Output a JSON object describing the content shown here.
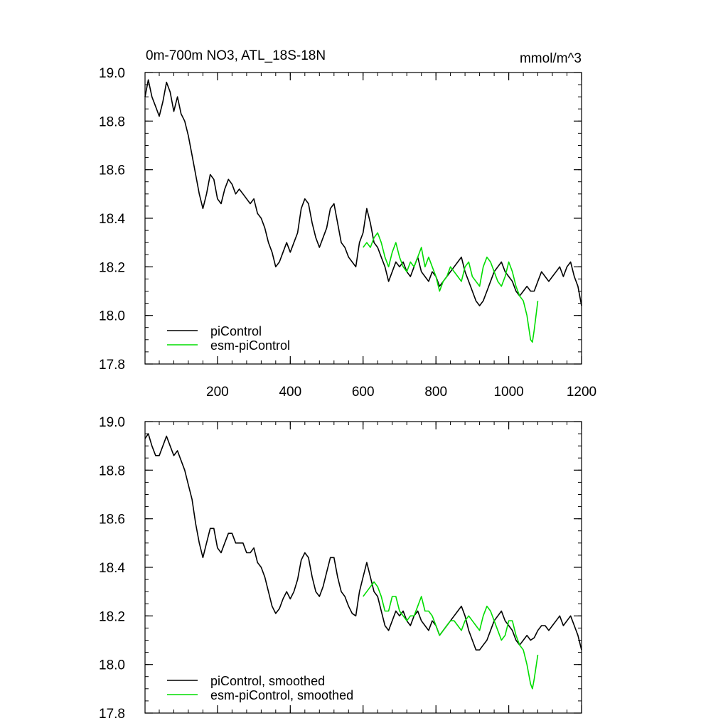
{
  "chart_data": [
    {
      "type": "line",
      "title": "0m-700m NO3, ATL_18S-18N",
      "units": "mmol/m^3",
      "xlim": [
        1,
        1200
      ],
      "ylim": [
        17.8,
        19.0
      ],
      "xticks": [
        200,
        400,
        600,
        800,
        1000,
        1200
      ],
      "xtick_labels": [
        "200",
        "400",
        "600",
        "800",
        "1000",
        "1200"
      ],
      "yticks": [
        17.8,
        18.0,
        18.2,
        18.4,
        18.6,
        18.8,
        19.0
      ],
      "ytick_labels": [
        "17.8",
        "18.0",
        "18.2",
        "18.4",
        "18.6",
        "18.8",
        "19.0"
      ],
      "legend_position": "bottom-left",
      "series": [
        {
          "name": "piControl",
          "color": "#000000",
          "x": [
            1,
            10,
            20,
            30,
            40,
            50,
            60,
            70,
            80,
            90,
            100,
            110,
            120,
            130,
            140,
            150,
            160,
            170,
            180,
            190,
            200,
            210,
            220,
            230,
            240,
            250,
            260,
            270,
            280,
            290,
            300,
            310,
            320,
            330,
            340,
            350,
            360,
            370,
            380,
            390,
            400,
            410,
            420,
            430,
            440,
            450,
            460,
            470,
            480,
            490,
            500,
            510,
            520,
            530,
            540,
            550,
            560,
            570,
            580,
            590,
            600,
            610,
            620,
            630,
            640,
            650,
            660,
            670,
            680,
            690,
            700,
            710,
            720,
            730,
            740,
            750,
            760,
            770,
            780,
            790,
            800,
            810,
            820,
            830,
            840,
            850,
            860,
            870,
            880,
            890,
            900,
            910,
            920,
            930,
            940,
            950,
            960,
            970,
            980,
            990,
            1000,
            1010,
            1020,
            1030,
            1040,
            1050,
            1060,
            1070,
            1080,
            1090,
            1100,
            1110,
            1120,
            1130,
            1140,
            1150,
            1160,
            1170,
            1180,
            1190,
            1200
          ],
          "y": [
            18.9,
            18.97,
            18.9,
            18.86,
            18.82,
            18.88,
            18.96,
            18.92,
            18.84,
            18.9,
            18.83,
            18.8,
            18.74,
            18.66,
            18.58,
            18.5,
            18.44,
            18.5,
            18.58,
            18.56,
            18.48,
            18.46,
            18.52,
            18.56,
            18.54,
            18.5,
            18.52,
            18.5,
            18.48,
            18.46,
            18.48,
            18.42,
            18.4,
            18.36,
            18.3,
            18.26,
            18.2,
            18.22,
            18.26,
            18.3,
            18.26,
            18.3,
            18.34,
            18.44,
            18.48,
            18.46,
            18.38,
            18.32,
            18.28,
            18.32,
            18.36,
            18.44,
            18.46,
            18.38,
            18.3,
            18.28,
            18.24,
            18.22,
            18.2,
            18.3,
            18.34,
            18.44,
            18.38,
            18.3,
            18.28,
            18.24,
            18.2,
            18.14,
            18.18,
            18.22,
            18.2,
            18.22,
            18.18,
            18.16,
            18.2,
            18.24,
            18.18,
            18.16,
            18.14,
            18.18,
            18.16,
            18.12,
            18.14,
            18.16,
            18.18,
            18.2,
            18.22,
            18.24,
            18.18,
            18.14,
            18.1,
            18.06,
            18.04,
            18.06,
            18.1,
            18.14,
            18.18,
            18.2,
            18.22,
            18.18,
            18.16,
            18.14,
            18.1,
            18.08,
            18.1,
            18.12,
            18.1,
            18.1,
            18.14,
            18.18,
            18.16,
            18.14,
            18.16,
            18.18,
            18.2,
            18.16,
            18.2,
            18.22,
            18.16,
            18.12,
            18.04
          ]
        },
        {
          "name": "esm-piControl",
          "color": "#00dd00",
          "x": [
            600,
            610,
            620,
            630,
            640,
            650,
            660,
            670,
            680,
            690,
            700,
            710,
            720,
            730,
            740,
            750,
            760,
            770,
            780,
            790,
            800,
            810,
            820,
            830,
            840,
            850,
            860,
            870,
            880,
            890,
            900,
            910,
            920,
            930,
            940,
            950,
            960,
            970,
            980,
            990,
            1000,
            1010,
            1020,
            1030,
            1040,
            1050,
            1060,
            1065,
            1070,
            1080
          ],
          "y": [
            18.28,
            18.3,
            18.28,
            18.32,
            18.34,
            18.3,
            18.24,
            18.2,
            18.26,
            18.3,
            18.24,
            18.2,
            18.18,
            18.22,
            18.2,
            18.24,
            18.28,
            18.2,
            18.24,
            18.2,
            18.16,
            18.1,
            18.14,
            18.16,
            18.2,
            18.18,
            18.16,
            18.14,
            18.2,
            18.22,
            18.16,
            18.14,
            18.12,
            18.2,
            18.24,
            18.22,
            18.18,
            18.14,
            18.12,
            18.16,
            18.22,
            18.18,
            18.12,
            18.08,
            18.06,
            18.0,
            17.9,
            17.89,
            17.94,
            18.06
          ]
        }
      ]
    },
    {
      "type": "line",
      "title": "",
      "units": "",
      "xlim": [
        1,
        1200
      ],
      "ylim": [
        17.8,
        19.0
      ],
      "yticks": [
        17.8,
        18.0,
        18.2,
        18.4,
        18.6,
        18.8,
        19.0
      ],
      "ytick_labels": [
        "17.8",
        "18.0",
        "18.2",
        "18.4",
        "18.6",
        "18.8",
        "19.0"
      ],
      "legend_position": "bottom-left",
      "series": [
        {
          "name": "piControl, smoothed",
          "color": "#000000",
          "x": [
            1,
            10,
            20,
            30,
            40,
            50,
            60,
            70,
            80,
            90,
            100,
            110,
            120,
            130,
            140,
            150,
            160,
            170,
            180,
            190,
            200,
            210,
            220,
            230,
            240,
            250,
            260,
            270,
            280,
            290,
            300,
            310,
            320,
            330,
            340,
            350,
            360,
            370,
            380,
            390,
            400,
            410,
            420,
            430,
            440,
            450,
            460,
            470,
            480,
            490,
            500,
            510,
            520,
            530,
            540,
            550,
            560,
            570,
            580,
            590,
            600,
            610,
            620,
            630,
            640,
            650,
            660,
            670,
            680,
            690,
            700,
            710,
            720,
            730,
            740,
            750,
            760,
            770,
            780,
            790,
            800,
            810,
            820,
            830,
            840,
            850,
            860,
            870,
            880,
            890,
            900,
            910,
            920,
            930,
            940,
            950,
            960,
            970,
            980,
            990,
            1000,
            1010,
            1020,
            1030,
            1040,
            1050,
            1060,
            1070,
            1080,
            1090,
            1100,
            1110,
            1120,
            1130,
            1140,
            1150,
            1160,
            1170,
            1180,
            1190,
            1200
          ],
          "y": [
            18.93,
            18.95,
            18.9,
            18.86,
            18.86,
            18.9,
            18.94,
            18.9,
            18.86,
            18.88,
            18.84,
            18.8,
            18.74,
            18.68,
            18.58,
            18.5,
            18.44,
            18.5,
            18.56,
            18.56,
            18.48,
            18.46,
            18.5,
            18.54,
            18.54,
            18.5,
            18.5,
            18.5,
            18.46,
            18.46,
            18.48,
            18.42,
            18.4,
            18.36,
            18.3,
            18.24,
            18.21,
            18.23,
            18.27,
            18.3,
            18.27,
            18.3,
            18.35,
            18.43,
            18.46,
            18.44,
            18.36,
            18.3,
            18.28,
            18.32,
            18.38,
            18.44,
            18.44,
            18.36,
            18.3,
            18.28,
            18.24,
            18.21,
            18.2,
            18.3,
            18.36,
            18.42,
            18.36,
            18.3,
            18.28,
            18.22,
            18.16,
            18.14,
            18.18,
            18.22,
            18.2,
            18.22,
            18.18,
            18.16,
            18.2,
            18.22,
            18.18,
            18.16,
            18.14,
            18.18,
            18.16,
            18.12,
            18.14,
            18.16,
            18.18,
            18.2,
            18.22,
            18.24,
            18.2,
            18.14,
            18.1,
            18.06,
            18.06,
            18.08,
            18.1,
            18.14,
            18.18,
            18.2,
            18.22,
            18.18,
            18.16,
            18.14,
            18.1,
            18.08,
            18.1,
            18.12,
            18.1,
            18.11,
            18.14,
            18.16,
            18.16,
            18.14,
            18.16,
            18.18,
            18.2,
            18.16,
            18.18,
            18.2,
            18.16,
            18.12,
            18.06
          ]
        },
        {
          "name": "esm-piControl, smoothed",
          "color": "#00dd00",
          "x": [
            600,
            610,
            620,
            630,
            640,
            650,
            660,
            670,
            680,
            690,
            700,
            710,
            720,
            730,
            740,
            750,
            760,
            770,
            780,
            790,
            800,
            810,
            820,
            830,
            840,
            850,
            860,
            870,
            880,
            890,
            900,
            910,
            920,
            930,
            940,
            950,
            960,
            970,
            980,
            990,
            1000,
            1010,
            1020,
            1030,
            1040,
            1050,
            1060,
            1065,
            1070,
            1080
          ],
          "y": [
            18.28,
            18.3,
            18.32,
            18.34,
            18.32,
            18.28,
            18.22,
            18.22,
            18.28,
            18.28,
            18.22,
            18.2,
            18.18,
            18.2,
            18.2,
            18.24,
            18.28,
            18.22,
            18.22,
            18.2,
            18.16,
            18.12,
            18.14,
            18.16,
            18.18,
            18.18,
            18.16,
            18.14,
            18.18,
            18.2,
            18.18,
            18.16,
            18.14,
            18.2,
            18.24,
            18.22,
            18.18,
            18.14,
            18.1,
            18.12,
            18.18,
            18.18,
            18.12,
            18.08,
            18.06,
            18.0,
            17.92,
            17.9,
            17.94,
            18.04
          ]
        }
      ]
    }
  ]
}
